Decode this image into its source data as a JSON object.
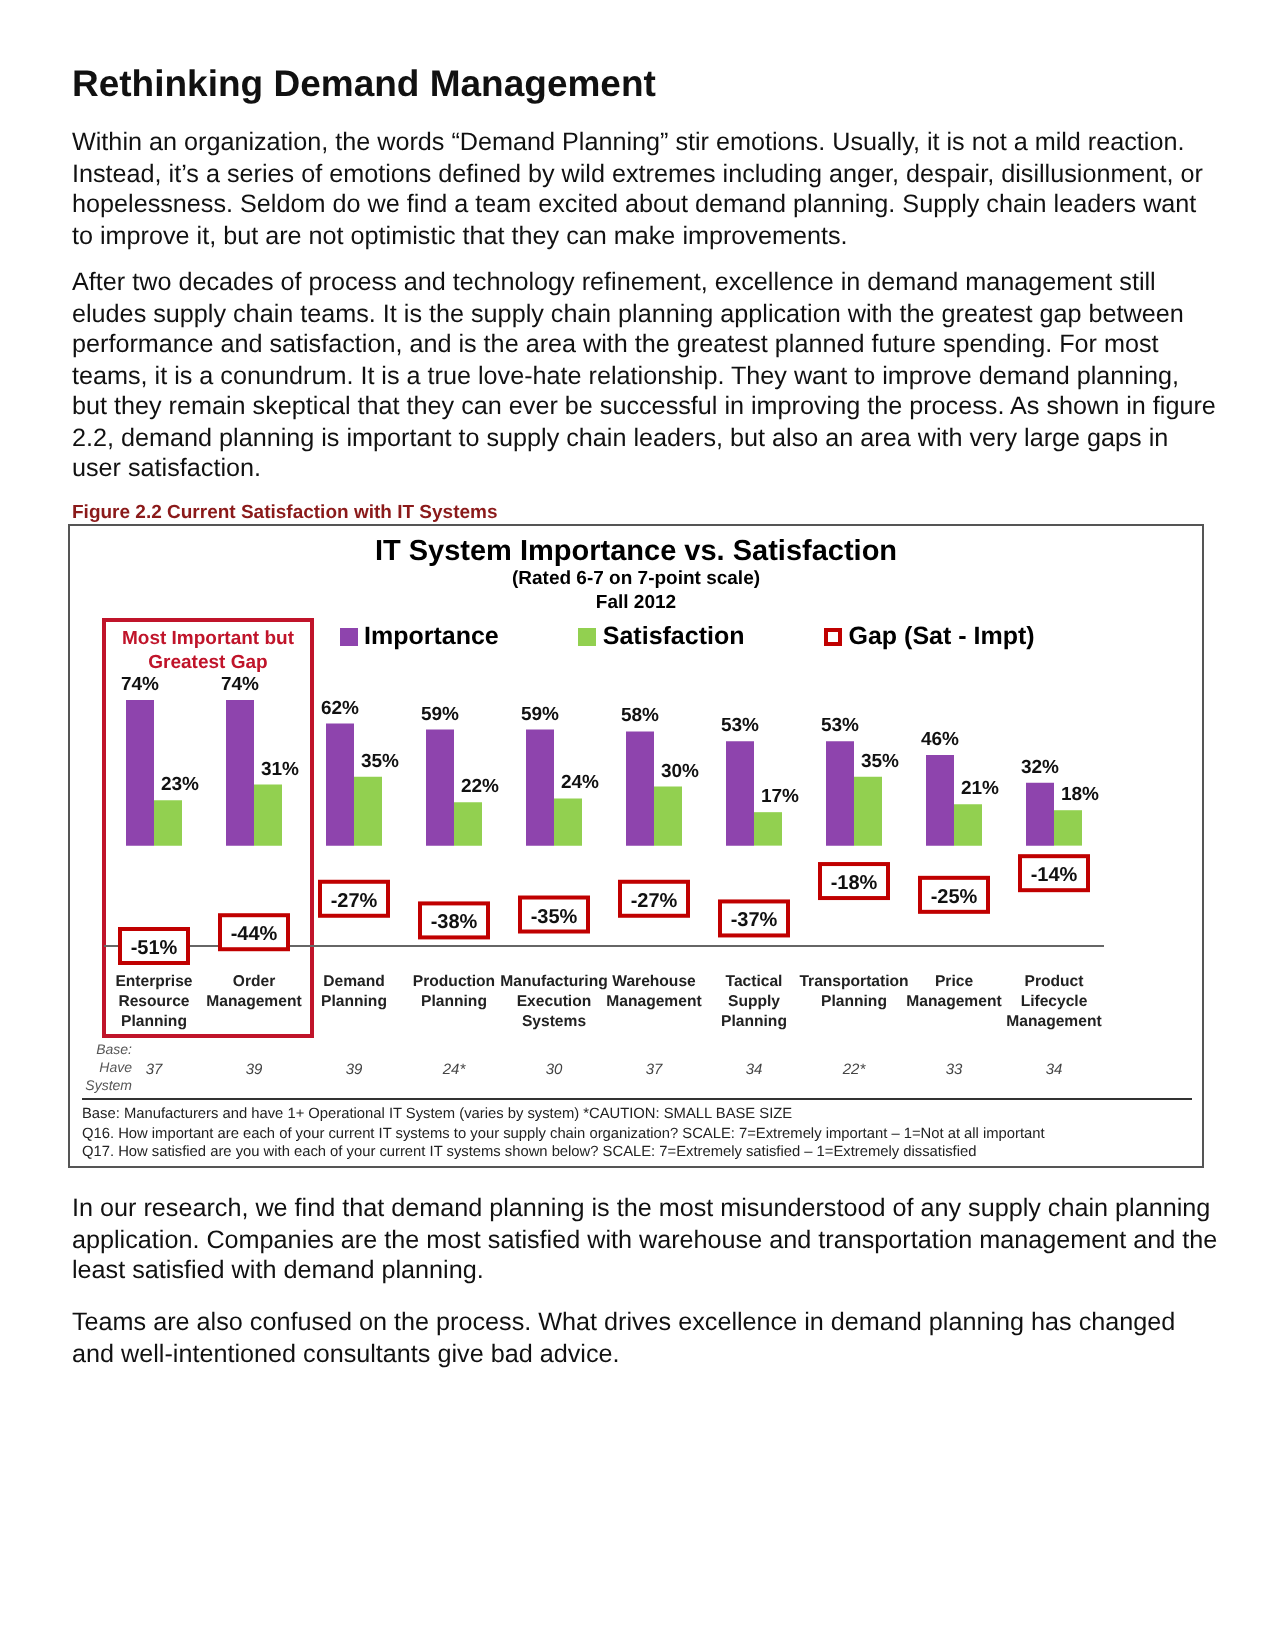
{
  "chart_data": {
    "type": "bar",
    "title": "IT System Importance vs. Satisfaction",
    "subtitle": "(Rated 6-7 on 7-point scale)\nFall 2012",
    "categories": [
      "Enterprise Resource Planning",
      "Order Management",
      "Demand Planning",
      "Production Planning",
      "Manufacturing Execution Systems",
      "Warehouse Management",
      "Tactical Supply Planning",
      "Transportation Planning",
      "Price Management",
      "Product Lifecycle Management"
    ],
    "series": [
      {
        "name": "Importance",
        "color": "#8e44ad",
        "values": [
          74,
          74,
          62,
          59,
          59,
          58,
          53,
          53,
          46,
          32
        ],
        "value_labels": [
          "74%",
          "74%",
          "62%",
          "59%",
          "59%",
          "58%",
          "53%",
          "53%",
          "46%",
          "32%"
        ]
      },
      {
        "name": "Satisfaction",
        "color": "#92d050",
        "values": [
          23,
          31,
          35,
          22,
          24,
          30,
          17,
          35,
          21,
          18
        ],
        "value_labels": [
          "23%",
          "31%",
          "35%",
          "22%",
          "24%",
          "30%",
          "17%",
          "35%",
          "21%",
          "18%"
        ]
      },
      {
        "name": "Gap (Sat - Impt)",
        "type": "scatter",
        "color": "#c00000",
        "values": [
          -51,
          -44,
          -27,
          -38,
          -35,
          -27,
          -37,
          -18,
          -25,
          -14
        ],
        "value_labels": [
          "-51%",
          "-44%",
          "-27%",
          "-38%",
          "-35%",
          "-27%",
          "-37%",
          "-18%",
          "-25%",
          "-14%"
        ]
      }
    ],
    "marker": "square",
    "legend": "top",
    "grid": false,
    "annotations": [
      "Rethinking Demand Management",
      "Within an organization, the words “Demand Planning” stir emotions. Usually, it is not a mild reaction. Instead, it’s a series of emotions defined by wild extremes including anger, despair, disillusionment, or hopelessness. Seldom do we find a team excited about demand planning. Supply chain leaders want to improve it, but are not optimistic that they can make improvements.",
      "After two decades of process and technology refinement, excellence in demand management still eludes supply chain teams. It is the supply chain planning application with the greatest gap between performance and satisfaction, and is the area with the greatest planned future spending. For most teams, it is a conundrum. It is a true love-hate relationship. They want to improve demand planning, but they remain skeptical that they can ever be successful in improving the process. As shown in figure 2.2, demand planning is important to supply chain leaders, but also an area with very large gaps in user satisfaction.",
      "Figure 2.2 Current Satisfaction with IT Systems",
      "Most Important but Greatest Gap",
      "Base: Have System",
      "37",
      "39",
      "39",
      "24*",
      "30",
      "37",
      "34",
      "22*",
      "33",
      "34",
      "Base:  Manufacturers and have 1+ Operational IT System (varies by system) *CAUTION:  SMALL BASE SIZE",
      "Q16. How important are each of your current IT systems to your supply chain organization? SCALE:  7=Extremely important – 1=Not at all important",
      "Q17. How satisfied are you with each of your current IT systems shown below? SCALE:  7=Extremely satisfied – 1=Extremely dissatisfied",
      "In our research, we find that demand planning is the most misunderstood of any supply chain planning application. Companies are the most satisfied with warehouse and transportation management and the least satisfied with demand planning.",
      "Teams are also confused on the process. What drives excellence in demand planning has changed and well-intentioned consultants give bad advice."
    ]
  }
}
